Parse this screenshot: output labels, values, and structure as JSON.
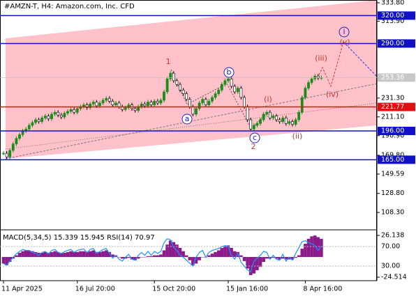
{
  "chart_data": {
    "type": "candlestick",
    "title": "#AMZN-T, H4:  Amazon.com, Inc. CFD",
    "categories": [
      "11 Apr 2025",
      null,
      null,
      null,
      null,
      null,
      null,
      null,
      null,
      null,
      null,
      null,
      null,
      null,
      null,
      null,
      null,
      null,
      null,
      null,
      null,
      null,
      null,
      "16 Jul 20:00",
      null,
      null,
      null,
      null,
      null,
      null,
      null,
      null,
      null,
      null,
      null,
      null,
      null,
      null,
      null,
      null,
      null,
      null,
      null,
      null,
      null,
      null,
      null,
      "15 Oct 20:00",
      null,
      null,
      null,
      null,
      null,
      null,
      null,
      null,
      null,
      null,
      null,
      null,
      null,
      null,
      null,
      null,
      null,
      null,
      null,
      null,
      null,
      null,
      "15 Jan 16:00",
      null,
      null,
      null,
      null,
      null,
      null,
      null,
      null,
      null,
      null,
      null,
      null,
      null,
      null,
      null,
      null,
      null,
      null,
      null,
      null,
      null,
      null,
      null,
      "8 Apr 16:00",
      null,
      null,
      null,
      null,
      null
    ],
    "values": [
      172,
      168,
      175,
      182,
      188,
      192,
      196,
      198,
      202,
      205,
      208,
      206,
      210,
      212,
      209,
      214,
      216,
      213,
      211,
      215,
      217,
      219,
      216,
      220,
      222,
      224,
      221,
      225,
      227,
      223,
      226,
      229,
      231,
      228,
      224,
      226,
      222,
      219,
      221,
      224,
      220,
      218,
      222,
      225,
      223,
      227,
      224,
      228,
      226,
      229,
      238,
      252,
      258,
      250,
      246,
      240,
      236,
      230,
      222,
      214,
      220,
      226,
      230,
      224,
      228,
      232,
      236,
      240,
      246,
      250,
      252,
      244,
      238,
      242,
      232,
      222,
      208,
      198,
      202,
      204,
      208,
      214,
      216,
      210,
      212,
      208,
      206,
      210,
      204,
      206,
      203,
      208,
      216,
      232,
      242,
      248,
      252,
      255,
      253,
      253.36
    ],
    "up_color": "#1a8c1a",
    "down_color": "#000000",
    "ylim": [
      89.6,
      336.8
    ],
    "yticks": [
      {
        "value": 333.8,
        "label": "333.80"
      },
      {
        "value": 313.9,
        "label": "313.90"
      },
      {
        "value": 231.3,
        "label": "231.30"
      },
      {
        "value": 211.1,
        "label": "211.10"
      },
      {
        "value": 190.9,
        "label": "190.90"
      },
      {
        "value": 169.8,
        "label": "169.80"
      },
      {
        "value": 149.59,
        "label": "149.59"
      },
      {
        "value": 128.8,
        "label": "128.80"
      },
      {
        "value": 108.3,
        "label": "108.30"
      }
    ],
    "current_price": {
      "value": 253.36,
      "label": "253.36"
    },
    "levels": [
      {
        "value": 320,
        "label": "320.00",
        "color": "#1010c8"
      },
      {
        "value": 290,
        "label": "290.00",
        "color": "#1010c8"
      },
      {
        "value": 221.77,
        "label": "221.77",
        "color": "#e01010"
      },
      {
        "value": 196,
        "label": "196.00",
        "color": "#1010c8"
      },
      {
        "value": 165,
        "label": "165.00",
        "color": "#1010c8"
      }
    ],
    "wave_labels": [
      {
        "label": "1",
        "color": "#c0392b"
      },
      {
        "label": "a",
        "color": "#2020c0"
      },
      {
        "label": "b",
        "color": "#2020c0"
      },
      {
        "label": "c",
        "color": "#2020c0"
      },
      {
        "label": "2",
        "color": "#c0392b"
      },
      {
        "label": "(i)",
        "color": "#c0392b"
      },
      {
        "label": "(ii)",
        "color": "#c0392b"
      },
      {
        "label": "(iii)",
        "color": "#c0392b"
      },
      {
        "label": "(iv)",
        "color": "#c0392b"
      },
      {
        "label": "(v)",
        "color": "#c0392b"
      },
      {
        "label": "i",
        "color": "#2020c0"
      }
    ],
    "indicator_title": "MACD(5,34,5) 15.339 15.945 RSI(14) 70.97",
    "macd": [
      -8,
      -10,
      -6,
      -2,
      2,
      5,
      7,
      8,
      8,
      7,
      6,
      5,
      5,
      6,
      5,
      6,
      7,
      6,
      5,
      5,
      6,
      7,
      6,
      6,
      7,
      7,
      6,
      7,
      8,
      6,
      6,
      7,
      8,
      6,
      3,
      2,
      0,
      -2,
      -2,
      -1,
      -3,
      -4,
      -2,
      0,
      0,
      1,
      1,
      2,
      2,
      3,
      8,
      15,
      20,
      18,
      15,
      11,
      7,
      2,
      -4,
      -10,
      -8,
      -4,
      0,
      0,
      2,
      4,
      6,
      8,
      11,
      13,
      14,
      11,
      7,
      6,
      2,
      -5,
      -14,
      -22,
      -20,
      -16,
      -12,
      -6,
      -2,
      -2,
      -1,
      -2,
      -3,
      -2,
      -3,
      -3,
      -3,
      -1,
      2,
      10,
      16,
      22,
      25,
      26,
      24,
      22
    ],
    "macd_color": "#8b1a8b",
    "macd_lim": [
      -28.73,
      30.36
    ],
    "macd_ticks": [
      {
        "value": 26.138,
        "label": "26.138"
      },
      {
        "value": -24.514,
        "label": "-24.514"
      }
    ],
    "rsi": [
      35,
      32,
      40,
      48,
      55,
      60,
      64,
      62,
      62,
      58,
      56,
      52,
      58,
      60,
      55,
      62,
      64,
      58,
      55,
      60,
      62,
      64,
      58,
      62,
      64,
      65,
      58,
      64,
      66,
      56,
      60,
      64,
      66,
      56,
      46,
      52,
      44,
      40,
      48,
      54,
      44,
      42,
      52,
      58,
      52,
      60,
      52,
      60,
      56,
      60,
      78,
      86,
      84,
      68,
      62,
      52,
      48,
      42,
      36,
      30,
      48,
      58,
      62,
      48,
      58,
      62,
      64,
      66,
      70,
      72,
      70,
      52,
      44,
      56,
      38,
      30,
      22,
      18,
      40,
      46,
      52,
      60,
      58,
      44,
      52,
      44,
      42,
      54,
      40,
      48,
      42,
      56,
      68,
      80,
      82,
      78,
      76,
      72,
      62,
      70.97
    ],
    "rsi_color": "#1e90ff",
    "rsi_lim": [
      0,
      100
    ],
    "rsi_ticks": [
      {
        "value": 70,
        "label": "70.00"
      },
      {
        "value": 30,
        "label": "30.00"
      }
    ]
  }
}
